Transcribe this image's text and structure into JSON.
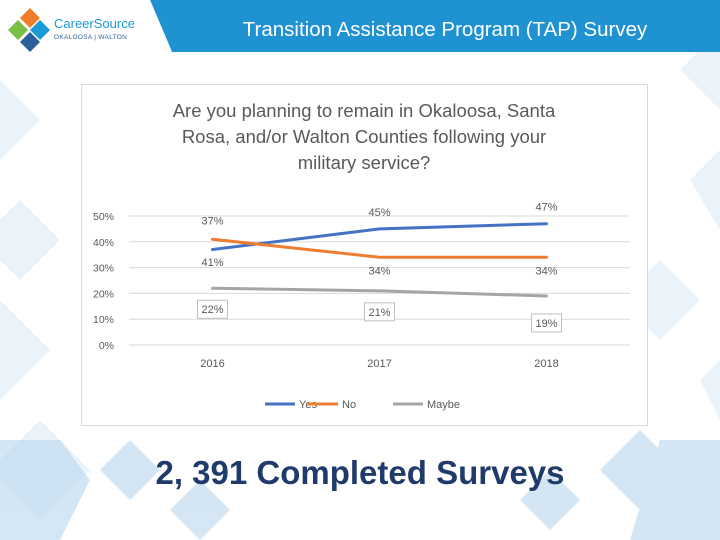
{
  "header": {
    "logo_line1": "CareerSource",
    "logo_line2": "OKALOOSA | WALTON",
    "title": "Transition Assistance Program (TAP) Survey"
  },
  "colors": {
    "header": "#1f92d2",
    "yes": "#4472c4",
    "no": "#ed7d31",
    "maybe": "#a5a5a5"
  },
  "chart_data": {
    "type": "line",
    "title": "Are you planning to remain in Okaloosa, Santa Rosa, and/or Walton Counties following your military service?",
    "title_lines": [
      "Are you planning to remain in Okaloosa, Santa",
      "Rosa, and/or Walton Counties following your",
      "military service?"
    ],
    "categories": [
      "2016",
      "2017",
      "2018"
    ],
    "series": [
      {
        "name": "Yes",
        "values": [
          37,
          45,
          47
        ]
      },
      {
        "name": "No",
        "values": [
          41,
          34,
          34
        ]
      },
      {
        "name": "Maybe",
        "values": [
          22,
          21,
          19
        ]
      }
    ],
    "data_labels": [
      [
        "37%",
        "45%",
        "47%"
      ],
      [
        "41%",
        "34%",
        "34%"
      ],
      [
        "22%",
        "21%",
        "19%"
      ]
    ],
    "ylim": [
      0,
      50
    ],
    "yticks": [
      "0%",
      "10%",
      "20%",
      "30%",
      "40%",
      "50%"
    ],
    "grid": true,
    "legend_position": "bottom"
  },
  "footer": {
    "text": "2, 391 Completed Surveys"
  }
}
